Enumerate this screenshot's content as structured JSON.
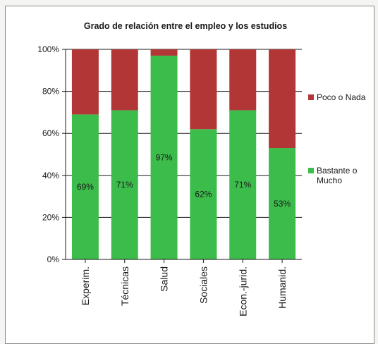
{
  "chart_data": {
    "type": "bar",
    "stacked": true,
    "percent": true,
    "title": "Grado de relación entre el empleo y los estudios",
    "categories": [
      "Experim.",
      "Técnicas",
      "Salud",
      "Sociales",
      "Econ.-jurid.",
      "Humanid."
    ],
    "series": [
      {
        "name": "Bastante o Mucho",
        "legend_lines": [
          "Bastante o",
          "Mucho"
        ],
        "color": "#3cbc4a",
        "values": [
          69,
          71,
          97,
          62,
          71,
          53
        ],
        "labels": [
          "69%",
          "71%",
          "97%",
          "62%",
          "71%",
          "53%"
        ]
      },
      {
        "name": "Poco o Nada",
        "legend_lines": [
          "Poco o Nada"
        ],
        "color": "#b23636",
        "values": [
          31,
          29,
          3,
          38,
          29,
          47
        ]
      }
    ],
    "ylim": [
      0,
      100
    ],
    "yticks": [
      0,
      20,
      40,
      60,
      80,
      100
    ],
    "ytick_labels": [
      "0%",
      "20%",
      "40%",
      "60%",
      "80%",
      "100%"
    ],
    "grid": true,
    "legend": "right",
    "xlabel": "",
    "ylabel": ""
  }
}
